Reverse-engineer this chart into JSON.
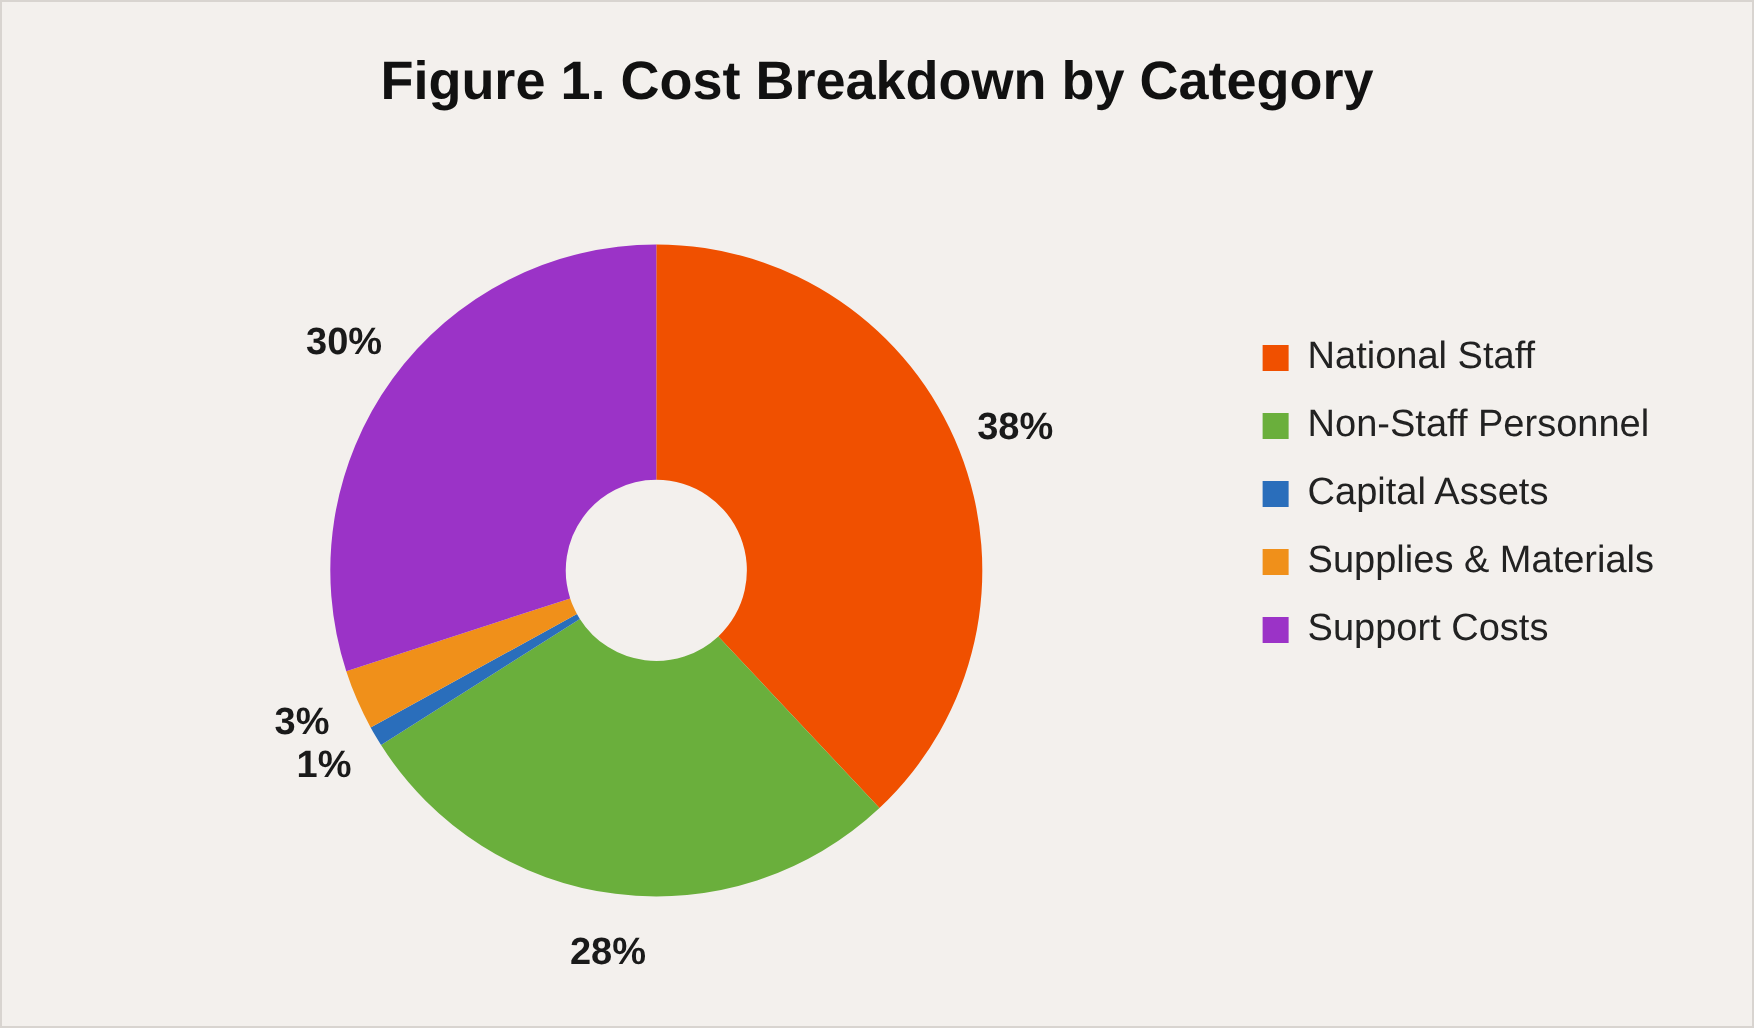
{
  "chart_data": {
    "type": "donut",
    "title": "Figure 1. Cost Breakdown by Category",
    "categories": [
      "National Staff",
      "Non-Staff Personnel",
      "Capital Assets",
      "Supplies & Materials",
      "Support Costs"
    ],
    "values": [
      38,
      28,
      1,
      3,
      30
    ],
    "colors": [
      "#f05000",
      "#6aaf3c",
      "#2a6ebb",
      "#f0901a",
      "#9b33c7"
    ],
    "value_labels": [
      "38%",
      "28%",
      "1%",
      "3%",
      "30%"
    ],
    "legend": "right"
  }
}
